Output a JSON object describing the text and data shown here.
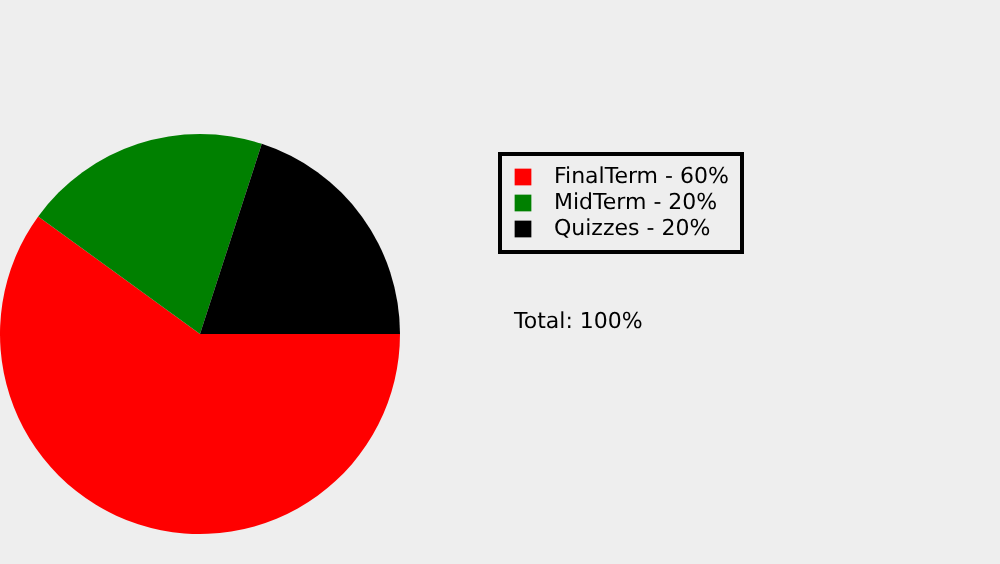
{
  "chart_data": {
    "type": "pie",
    "categories": [
      "FinalTerm - 60%",
      "MidTerm - 20%",
      "Quizzes - 20%"
    ],
    "values": [
      60,
      20,
      20
    ],
    "colors": [
      "#ff0000",
      "#008000",
      "#000000"
    ],
    "legend": "right",
    "annotations": [
      "Total: 100%"
    ]
  }
}
